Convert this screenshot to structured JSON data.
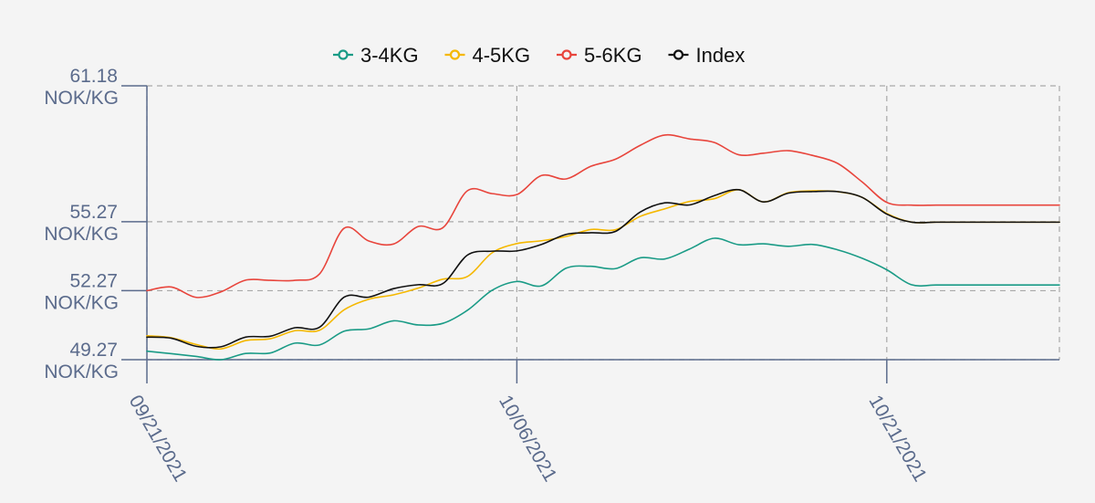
{
  "chart_data": {
    "type": "line",
    "title": "",
    "xlabel": "",
    "ylabel": "",
    "x": [
      "2021-09-21",
      "2021-09-22",
      "2021-09-23",
      "2021-09-24",
      "2021-09-25",
      "2021-09-26",
      "2021-09-27",
      "2021-09-28",
      "2021-09-29",
      "2021-09-30",
      "2021-10-01",
      "2021-10-02",
      "2021-10-03",
      "2021-10-04",
      "2021-10-05",
      "2021-10-06",
      "2021-10-07",
      "2021-10-08",
      "2021-10-09",
      "2021-10-10",
      "2021-10-11",
      "2021-10-12",
      "2021-10-13",
      "2021-10-14",
      "2021-10-15",
      "2021-10-16",
      "2021-10-17",
      "2021-10-18",
      "2021-10-19",
      "2021-10-20",
      "2021-10-21",
      "2021-10-22",
      "2021-10-23",
      "2021-10-24",
      "2021-10-25",
      "2021-10-26",
      "2021-10-27",
      "2021-10-28"
    ],
    "series": [
      {
        "name": "3-4KG",
        "color": "#1a9b86",
        "values": [
          49.64,
          49.53,
          49.41,
          49.27,
          49.54,
          49.56,
          49.99,
          49.91,
          50.51,
          50.61,
          50.96,
          50.78,
          50.85,
          51.42,
          52.29,
          52.67,
          52.48,
          53.25,
          53.33,
          53.23,
          53.7,
          53.65,
          54.08,
          54.55,
          54.27,
          54.31,
          54.2,
          54.28,
          54.05,
          53.68,
          53.18,
          52.53,
          52.52,
          52.52,
          52.52,
          52.52,
          52.52,
          52.52
        ]
      },
      {
        "name": "4-5KG",
        "color": "#f5b800",
        "values": [
          50.31,
          50.22,
          49.93,
          49.74,
          50.1,
          50.18,
          50.53,
          50.55,
          51.44,
          51.9,
          52.09,
          52.38,
          52.77,
          52.89,
          53.92,
          54.32,
          54.44,
          54.63,
          54.93,
          54.92,
          55.5,
          55.83,
          56.15,
          56.27,
          56.66,
          56.13,
          56.53,
          56.61,
          56.58,
          56.33,
          55.63,
          55.25,
          55.25,
          55.25,
          55.25,
          55.25,
          55.25,
          55.25
        ]
      },
      {
        "name": "5-6KG",
        "color": "#e8453c",
        "values": [
          52.27,
          52.43,
          51.98,
          52.22,
          52.73,
          52.72,
          52.72,
          53.0,
          54.99,
          54.43,
          54.3,
          55.06,
          55.01,
          56.62,
          56.49,
          56.45,
          57.28,
          57.13,
          57.68,
          57.99,
          58.59,
          59.04,
          58.87,
          58.72,
          58.18,
          58.25,
          58.36,
          58.15,
          57.81,
          57.0,
          56.11,
          55.99,
          55.99,
          55.99,
          55.99,
          55.99,
          55.99,
          55.99
        ]
      },
      {
        "name": "Index",
        "color": "#111111",
        "values": [
          50.25,
          50.2,
          49.85,
          49.83,
          50.25,
          50.29,
          50.66,
          50.68,
          51.99,
          51.99,
          52.36,
          52.53,
          52.58,
          53.82,
          53.99,
          54.0,
          54.28,
          54.72,
          54.79,
          54.85,
          55.69,
          56.09,
          56.0,
          56.4,
          56.66,
          56.13,
          56.51,
          56.58,
          56.58,
          56.33,
          55.6,
          55.25,
          55.25,
          55.25,
          55.25,
          55.25,
          55.25,
          55.25
        ]
      }
    ],
    "yticks": [
      {
        "value": 61.18,
        "line1": "61.18",
        "line2": "NOK/KG"
      },
      {
        "value": 55.27,
        "line1": "55.27",
        "line2": "NOK/KG"
      },
      {
        "value": 52.27,
        "line1": "52.27",
        "line2": "NOK/KG"
      },
      {
        "value": 49.27,
        "line1": "49.27",
        "line2": "NOK/KG"
      }
    ],
    "xticks": [
      {
        "value": "2021-09-21",
        "label": "09/21/2021"
      },
      {
        "value": "2021-10-06",
        "label": "10/06/2021"
      },
      {
        "value": "2021-10-21",
        "label": "10/21/2021"
      }
    ],
    "ylim": [
      49.27,
      61.18
    ],
    "xlim": [
      "2021-09-21",
      "2021-10-28"
    ],
    "grid": true,
    "legend": "top-center"
  }
}
